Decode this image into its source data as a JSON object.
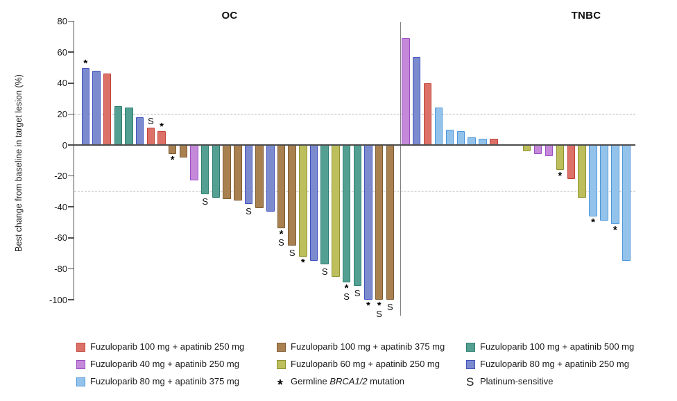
{
  "figure": {
    "ylabel": "Best change from baseline in target lesion (%)"
  },
  "chart_data": {
    "type": "bar",
    "subtype": "waterfall",
    "ylabel": "Best change from baseline in target lesion (%)",
    "ylim": [
      -100,
      80
    ],
    "yticks": [
      80,
      60,
      40,
      20,
      0,
      -20,
      -40,
      -60,
      -80,
      -100
    ],
    "reference_lines": [
      20,
      -30
    ],
    "grid": false,
    "annotation_symbols": {
      "brca": "*",
      "platinum_sensitive": "S"
    },
    "groups": {
      "red": {
        "label": "Fuzuloparib 100 mg + apatinib 250 mg",
        "fill": "#DC7168",
        "stroke": "#C2443C"
      },
      "purple": {
        "label": "Fuzuloparib 40 mg + apatinib 250 mg",
        "fill": "#C489D8",
        "stroke": "#9C4EC6"
      },
      "sky": {
        "label": "Fuzuloparib 80 mg + apatinib 375 mg",
        "fill": "#93C3EB",
        "stroke": "#4E97DA"
      },
      "brown": {
        "label": "Fuzuloparib 100 mg + apatinib 375 mg",
        "fill": "#A98050",
        "stroke": "#7D5A31"
      },
      "yellow": {
        "label": "Fuzuloparib 60 mg + apatinib 250 mg",
        "fill": "#BDBF5D",
        "stroke": "#8F9232"
      },
      "teal": {
        "label": "Fuzuloparib 100 mg + apatinib 500 mg",
        "fill": "#53A093",
        "stroke": "#2E7D70"
      },
      "blue": {
        "label": "Fuzuloparib 80 mg + apatinib 250 mg",
        "fill": "#7C8BCE",
        "stroke": "#4152BE"
      }
    },
    "panels": [
      {
        "title": "OC",
        "bars": [
          {
            "g": "blue",
            "v": 50,
            "brca": true
          },
          {
            "g": "blue",
            "v": 48
          },
          {
            "g": "red",
            "v": 46
          },
          {
            "g": "teal",
            "v": 25
          },
          {
            "g": "teal",
            "v": 24
          },
          {
            "g": "blue",
            "v": 18
          },
          {
            "g": "red",
            "v": 11,
            "ps": true
          },
          {
            "g": "red",
            "v": 9,
            "brca": true
          },
          {
            "g": "brown",
            "v": -6,
            "brca": true
          },
          {
            "g": "brown",
            "v": -8
          },
          {
            "g": "purple",
            "v": -23
          },
          {
            "g": "teal",
            "v": -32,
            "ps": true
          },
          {
            "g": "teal",
            "v": -34
          },
          {
            "g": "brown",
            "v": -35
          },
          {
            "g": "brown",
            "v": -36
          },
          {
            "g": "blue",
            "v": -38,
            "ps": true
          },
          {
            "g": "brown",
            "v": -41
          },
          {
            "g": "blue",
            "v": -43
          },
          {
            "g": "brown",
            "v": -54,
            "brca": true,
            "ps": true
          },
          {
            "g": "brown",
            "v": -65,
            "ps": true
          },
          {
            "g": "yellow",
            "v": -72,
            "brca": true
          },
          {
            "g": "blue",
            "v": -75
          },
          {
            "g": "teal",
            "v": -77,
            "ps": true
          },
          {
            "g": "yellow",
            "v": -85
          },
          {
            "g": "teal",
            "v": -89,
            "brca": true,
            "ps": true
          },
          {
            "g": "teal",
            "v": -91,
            "ps": true
          },
          {
            "g": "blue",
            "v": -100,
            "brca": true
          },
          {
            "g": "brown",
            "v": -100,
            "brca": true,
            "ps": true
          },
          {
            "g": "brown",
            "v": -100,
            "ps": true
          }
        ]
      },
      {
        "title": "TNBC",
        "bars": [
          {
            "g": "purple",
            "v": 69
          },
          {
            "g": "blue",
            "v": 57
          },
          {
            "g": "red",
            "v": 40
          },
          {
            "g": "sky",
            "v": 24
          },
          {
            "g": "sky",
            "v": 10
          },
          {
            "g": "sky",
            "v": 9
          },
          {
            "g": "sky",
            "v": 5
          },
          {
            "g": "sky",
            "v": 4
          },
          {
            "g": "red",
            "v": 4
          },
          {
            "g": null,
            "v": 0
          },
          {
            "g": null,
            "v": 0
          },
          {
            "g": "yellow",
            "v": -4
          },
          {
            "g": "purple",
            "v": -6
          },
          {
            "g": "purple",
            "v": -7
          },
          {
            "g": "yellow",
            "v": -16,
            "brca": true
          },
          {
            "g": "red",
            "v": -22
          },
          {
            "g": "yellow",
            "v": -34
          },
          {
            "g": "sky",
            "v": -46,
            "brca": true
          },
          {
            "g": "sky",
            "v": -49
          },
          {
            "g": "sky",
            "v": -51,
            "brca": true
          },
          {
            "g": "sky",
            "v": -75
          }
        ]
      }
    ]
  },
  "legend": {
    "columns": [
      [
        {
          "swatch": "red"
        },
        {
          "swatch": "purple"
        },
        {
          "swatch": "sky"
        }
      ],
      [
        {
          "swatch": "brown"
        },
        {
          "swatch": "yellow"
        },
        {
          "symbol": "*",
          "prefix": "Germline ",
          "italic": "BRCA1/2",
          "suffix": " mutation"
        }
      ],
      [
        {
          "swatch": "teal"
        },
        {
          "swatch": "blue"
        },
        {
          "symbol": "S",
          "prefix": "Platinum-sensitive",
          "italic": "",
          "suffix": ""
        }
      ]
    ]
  }
}
